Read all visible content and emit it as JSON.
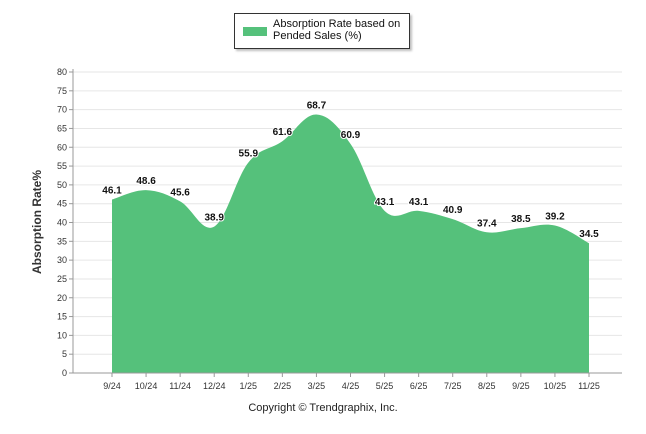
{
  "chart_data": {
    "type": "area",
    "title": "",
    "xlabel": "",
    "ylabel": "Absorption Rate%",
    "ylim": [
      0,
      80
    ],
    "yticks": [
      0,
      5,
      10,
      15,
      20,
      25,
      30,
      35,
      40,
      45,
      50,
      55,
      60,
      65,
      70,
      75,
      80
    ],
    "categories": [
      "9/24",
      "10/24",
      "11/24",
      "12/24",
      "1/25",
      "2/25",
      "3/25",
      "4/25",
      "5/25",
      "6/25",
      "7/25",
      "8/25",
      "9/25",
      "10/25",
      "11/25"
    ],
    "series": [
      {
        "name": "Absorption Rate based on Pended Sales (%)",
        "values": [
          46.1,
          48.6,
          45.6,
          38.9,
          55.9,
          61.6,
          68.7,
          60.9,
          43.1,
          43.1,
          40.9,
          37.4,
          38.5,
          39.2,
          34.5
        ],
        "color": "#55c17b"
      }
    ],
    "grid": true,
    "legend_position": "top-center"
  },
  "legend": {
    "label": "Absorption Rate based on Pended Sales (%)"
  },
  "footer": {
    "copyright": "Copyright © Trendgraphix, Inc."
  },
  "colors": {
    "area": "#55c17b",
    "grid": "#e6e6e6",
    "axis": "#999999"
  }
}
